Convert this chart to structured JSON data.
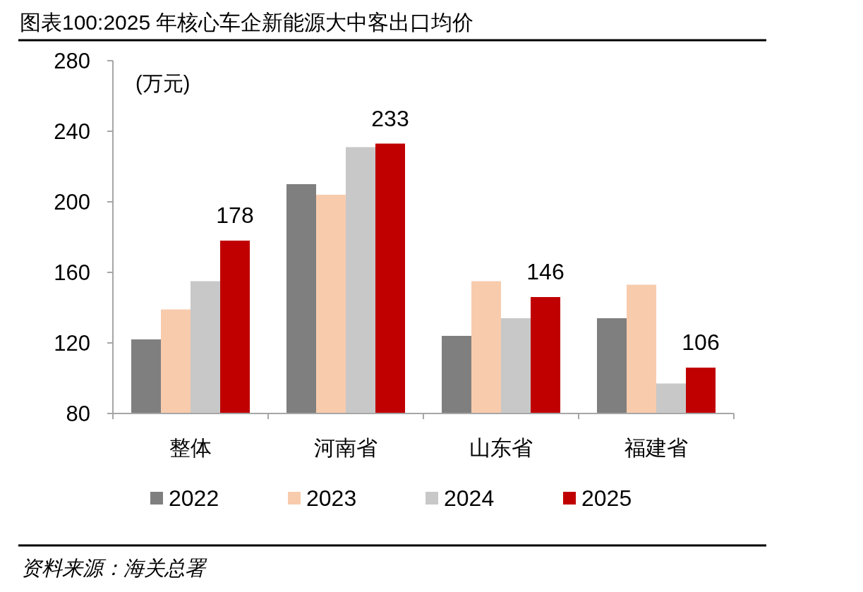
{
  "chart_data": {
    "type": "bar",
    "title": "图表100:2025 年核心车企新能源大中客出口均价",
    "ylabel": "(万元)",
    "categories": [
      "整体",
      "河南省",
      "山东省",
      "福建省"
    ],
    "series": [
      {
        "name": "2022",
        "color": "#7f7f7f",
        "values": [
          122,
          210,
          124,
          134
        ]
      },
      {
        "name": "2023",
        "color": "#f8cbad",
        "values": [
          139,
          204,
          155,
          153
        ]
      },
      {
        "name": "2024",
        "color": "#c8c8c8",
        "values": [
          155,
          231,
          134,
          97
        ]
      },
      {
        "name": "2025",
        "color": "#c00000",
        "values": [
          178,
          233,
          146,
          106
        ],
        "value_labels": [
          "178",
          "233",
          "146",
          "106"
        ]
      }
    ],
    "ylim": [
      80,
      280
    ],
    "yticks": [
      80,
      120,
      160,
      200,
      240,
      280
    ],
    "legend": "bottom",
    "annotations": [
      "资料来源：海关总署"
    ]
  }
}
